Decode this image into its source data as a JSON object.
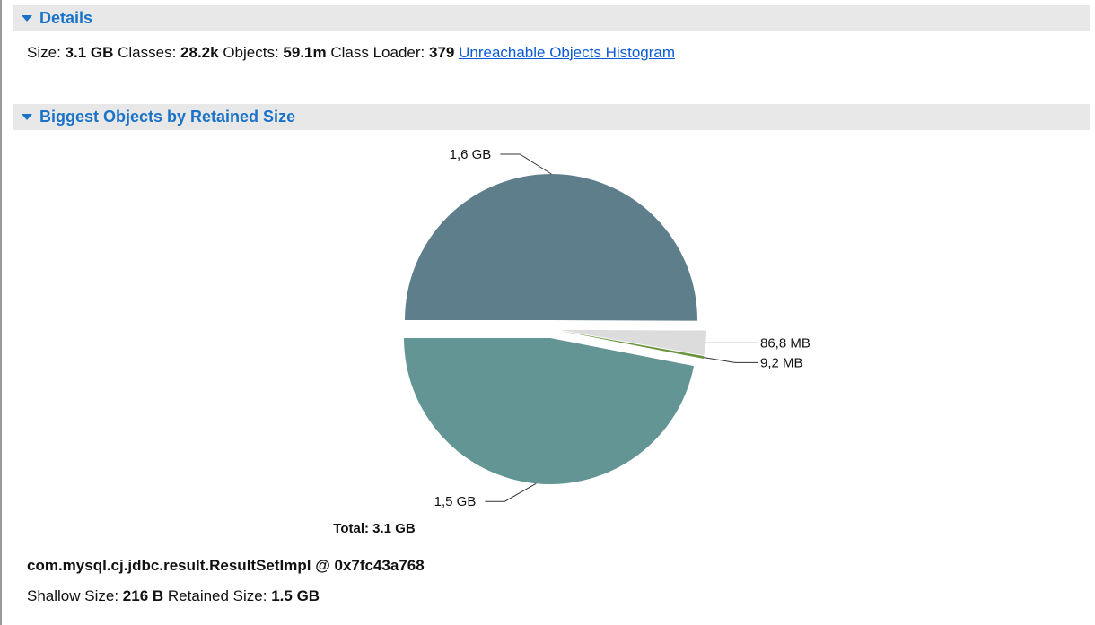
{
  "sections": [
    {
      "title": "Details"
    },
    {
      "title": "Biggest Objects by Retained Size"
    }
  ],
  "details": [
    {
      "label": "Size:",
      "value": "3.1 GB"
    },
    {
      "label": "Classes:",
      "value": "28.2k"
    },
    {
      "label": "Objects:",
      "value": "59.1m"
    },
    {
      "label": "Class Loader:",
      "value": "379"
    }
  ],
  "details_link": "Unreachable Objects Histogram",
  "chart_data": {
    "type": "pie",
    "values": [
      1600,
      86.8,
      9.2,
      1500
    ],
    "value_labels": [
      "1,6 GB",
      "86,8 MB",
      "9,2 MB",
      "1,5 GB"
    ],
    "colors": [
      "#5f7e8c",
      "#dcdcdc",
      "#6b9440",
      "#629594"
    ],
    "total_label": "Total: 3.1 GB"
  },
  "selected": {
    "title": "com.mysql.cj.jdbc.result.ResultSetImpl @ 0x7fc43a768",
    "fields": [
      {
        "label": "Shallow Size:",
        "value": "216 B"
      },
      {
        "label": "Retained Size:",
        "value": "1.5 GB"
      }
    ]
  }
}
